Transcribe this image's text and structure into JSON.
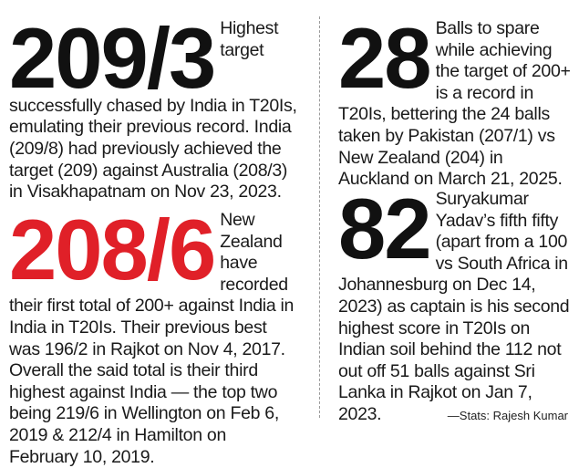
{
  "stats": [
    {
      "figure": "209/3",
      "figure_color": "#111111",
      "text": "Highest target successfully chased by India in T20Is, emulating their previous record. India (209/8) had previously achieved the target (209) against Australia (208/3) in Visakhapatnam on Nov 23, 2023."
    },
    {
      "figure": "208/6",
      "figure_color": "#e02028",
      "text": "New Zealand have recorded their first total of 200+ against India in India in T20Is. Their previous best was 196/2 in Rajkot on Nov 4, 2017. Overall the said total is their third highest against India — the top two being 219/6 in Wellington on Feb 6, 2019 & 212/4 in Hamilton on February 10, 2019."
    },
    {
      "figure": "28",
      "figure_color": "#111111",
      "text": "Balls to spare while achieving the target of 200+ is a record in T20Is, bettering the 24 balls taken by Pakistan (207/1) vs New Zealand (204) in Auckland on March 21, 2025."
    },
    {
      "figure": "82",
      "figure_color": "#111111",
      "text": "Suryakumar Yadav’s fifth fifty (apart from a 100 vs South Africa in Johannesburg on Dec 14, 2023) as captain is his second highest score in T20Is on Indian soil behind the 112 not out off 51 balls against Sri Lanka in Rajkot on Jan 7, 2023."
    }
  ],
  "credit": "—Stats: Rajesh Kumar"
}
